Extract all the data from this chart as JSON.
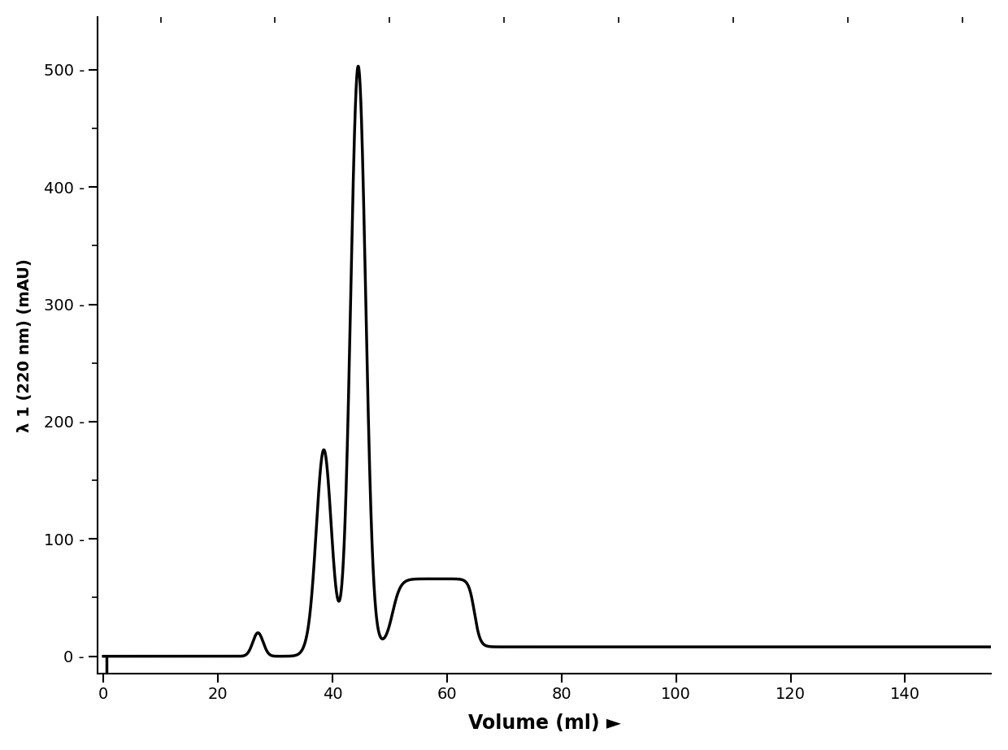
{
  "ylabel": "λ 1 (220 nm) (mAU)",
  "xlabel": "Volume (ml) ►",
  "line_color": "#000000",
  "line_width": 2.5,
  "background_color": "#ffffff",
  "xlim": [
    -1,
    155
  ],
  "ylim": [
    -15,
    545
  ],
  "xticks": [
    0,
    20,
    40,
    60,
    80,
    100,
    120,
    140
  ],
  "yticks": [
    0,
    100,
    200,
    300,
    400,
    500
  ],
  "ytick_minor": [
    50,
    150,
    250,
    350,
    450
  ],
  "xlabel_fontsize": 17,
  "ylabel_fontsize": 14,
  "tick_fontsize": 14,
  "figsize": [
    12.4,
    9.23
  ],
  "dpi": 100
}
